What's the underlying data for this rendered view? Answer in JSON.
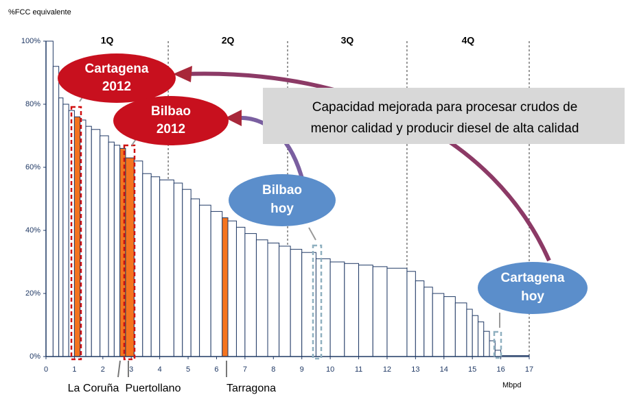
{
  "chart_data": {
    "type": "histogram",
    "ylabel": "%FCC equivalente",
    "xlabel": "Mbpd",
    "bins": [
      0,
      0.25,
      0.45,
      0.6,
      0.8,
      1,
      1.2,
      1.4,
      1.6,
      1.9,
      2.2,
      2.4,
      2.6,
      2.8,
      3.1,
      3.4,
      3.7,
      4,
      4.5,
      4.8,
      5.1,
      5.4,
      5.8,
      6.2,
      6.4,
      6.7,
      7,
      7.4,
      7.8,
      8.2,
      8.6,
      9,
      9.5,
      10,
      10.5,
      11,
      11.5,
      12,
      12.7,
      13,
      13.3,
      13.6,
      14,
      14.4,
      14.8,
      15,
      15.2,
      15.4,
      15.6,
      15.8,
      16,
      17
    ],
    "values": [
      100,
      92,
      82,
      80,
      78,
      76,
      75,
      73,
      72,
      70,
      68,
      67,
      66,
      63,
      62,
      58,
      57,
      56,
      55,
      53,
      50,
      48,
      46,
      44,
      43,
      41,
      39,
      37,
      36,
      35,
      34,
      33,
      31,
      30,
      29.5,
      29,
      28.5,
      28,
      27,
      24,
      22,
      20,
      19,
      17,
      15,
      13,
      11,
      8,
      5,
      2,
      0.3
    ],
    "colors": [
      "#ffffff",
      "#ffffff",
      "#ffffff",
      "#ffffff",
      "#ffffff",
      "#f5741f",
      "#ffffff",
      "#ffffff",
      "#ffffff",
      "#ffffff",
      "#ffffff",
      "#ffffff",
      "#f5741f",
      "#f5741f",
      "#ffffff",
      "#ffffff",
      "#ffffff",
      "#ffffff",
      "#ffffff",
      "#ffffff",
      "#ffffff",
      "#ffffff",
      "#ffffff",
      "#f5741f",
      "#ffffff",
      "#ffffff",
      "#ffffff",
      "#ffffff",
      "#ffffff",
      "#ffffff",
      "#ffffff",
      "#ffffff",
      "#ffffff",
      "#ffffff",
      "#ffffff",
      "#ffffff",
      "#ffffff",
      "#ffffff",
      "#ffffff",
      "#ffffff",
      "#ffffff",
      "#ffffff",
      "#ffffff",
      "#ffffff",
      "#ffffff",
      "#ffffff",
      "#ffffff",
      "#ffffff",
      "#ffffff",
      "#ffffff",
      "#ffffff"
    ],
    "edge_color": "#1f3864",
    "xlim": [
      0,
      17
    ],
    "xticks": [
      0,
      1,
      2,
      3,
      4,
      5,
      6,
      7,
      8,
      9,
      10,
      11,
      12,
      13,
      14,
      15,
      16,
      17
    ],
    "ylim": [
      0,
      100
    ],
    "yticks": [
      {
        "value": 0,
        "label": "0%"
      },
      {
        "value": 20,
        "label": "20%"
      },
      {
        "value": 40,
        "label": "40%"
      },
      {
        "value": 60,
        "label": "60%"
      },
      {
        "value": 80,
        "label": "80%"
      },
      {
        "value": 100,
        "label": "100%"
      }
    ],
    "quartile_labels": [
      "1Q",
      "2Q",
      "3Q",
      "4Q"
    ],
    "quartile_edges": [
      4.3,
      8.5,
      12.7,
      17
    ],
    "annotations": [
      {
        "lines": [
          "Cartagena",
          "2012"
        ]
      },
      {
        "lines": [
          "Bilbao",
          "2012"
        ]
      },
      {
        "lines": [
          "Bilbao",
          "hoy"
        ]
      },
      {
        "lines": [
          "Cartagena",
          "hoy"
        ]
      },
      {
        "lines": [
          "Capacidad mejorada para procesar crudos de",
          "menor calidad y producir diesel de alta calidad"
        ]
      }
    ],
    "refinery_labels": [
      "La Coruña",
      "Puertollano",
      "Tarragona"
    ]
  }
}
